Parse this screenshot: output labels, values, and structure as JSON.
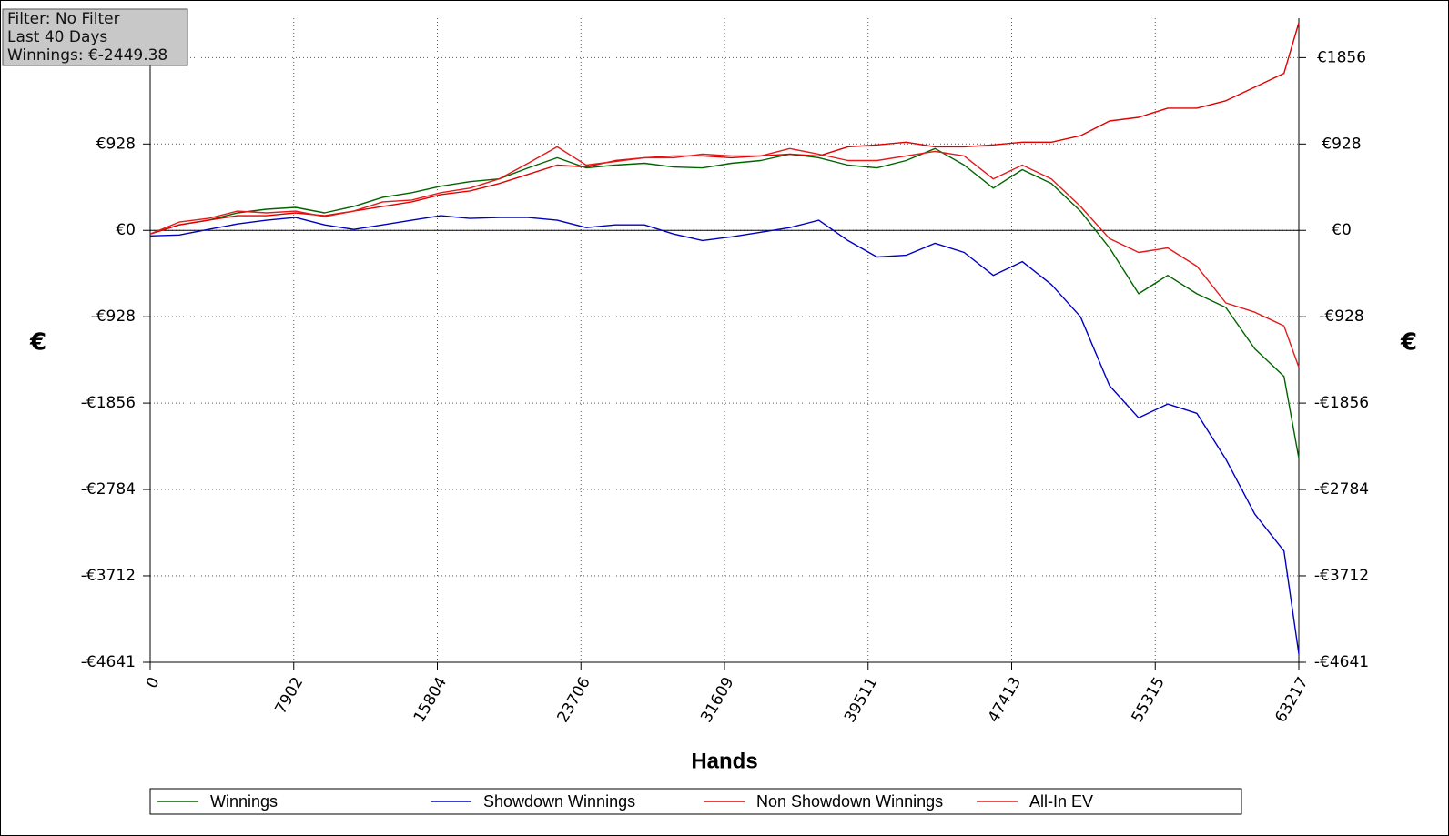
{
  "info": {
    "filter": "Filter: No Filter",
    "period": "Last  40 Days",
    "winnings": "Winnings: €-2449.38"
  },
  "chart_data": {
    "type": "line",
    "xlabel": "Hands",
    "ylabel": "€",
    "x": [
      0,
      1600,
      3200,
      4800,
      6400,
      8000,
      9600,
      11200,
      12800,
      14400,
      16000,
      17600,
      19200,
      20800,
      22400,
      24000,
      25600,
      27200,
      28800,
      30400,
      32000,
      33600,
      35200,
      36800,
      38400,
      40000,
      41600,
      43200,
      44800,
      46400,
      48000,
      49600,
      51200,
      52800,
      54400,
      56000,
      57600,
      59200,
      60800,
      62400,
      63217
    ],
    "xlim": [
      0,
      63217
    ],
    "xticks": [
      0,
      7902,
      15804,
      23706,
      31609,
      39511,
      47413,
      55315,
      63217
    ],
    "ylim": [
      -4641,
      2280
    ],
    "yticks": [
      {
        "value": 1856,
        "label": "€1856"
      },
      {
        "value": 928,
        "label": "€928"
      },
      {
        "value": 0,
        "label": "€0"
      },
      {
        "value": -928,
        "label": "-€928"
      },
      {
        "value": -1856,
        "label": "-€1856"
      },
      {
        "value": -2784,
        "label": "-€2784"
      },
      {
        "value": -3712,
        "label": "-€3712"
      },
      {
        "value": -4641,
        "label": "-€4641"
      }
    ],
    "grid": true,
    "legend": "bottom",
    "series": [
      {
        "name": "Winnings",
        "color": "#006400",
        "values": [
          -39,
          59,
          109,
          188,
          227,
          247,
          188,
          257,
          355,
          405,
          474,
          523,
          553,
          671,
          780,
          671,
          701,
          721,
          681,
          671,
          721,
          750,
          819,
          780,
          701,
          671,
          750,
          879,
          701,
          454,
          652,
          503,
          207,
          -188,
          -681,
          -484,
          -681,
          -829,
          -1273,
          -1569,
          -2449
        ]
      },
      {
        "name": "Showdown Winnings",
        "color": "#0000c0",
        "values": [
          -59,
          -49,
          10,
          69,
          109,
          138,
          59,
          10,
          59,
          109,
          158,
          128,
          138,
          138,
          109,
          30,
          59,
          59,
          -39,
          -109,
          -69,
          -20,
          30,
          109,
          -109,
          -286,
          -267,
          -138,
          -237,
          -484,
          -336,
          -582,
          -928,
          -1668,
          -2014,
          -1866,
          -1965,
          -2458,
          -3050,
          -3445,
          -4551
        ]
      },
      {
        "name": "Non Showdown Winnings",
        "color": "#e00000",
        "values": [
          -39,
          59,
          109,
          158,
          158,
          188,
          158,
          207,
          257,
          306,
          385,
          424,
          503,
          602,
          701,
          681,
          750,
          780,
          800,
          800,
          780,
          800,
          819,
          800,
          898,
          918,
          948,
          898,
          898,
          918,
          948,
          948,
          1017,
          1175,
          1214,
          1313,
          1313,
          1392,
          1540,
          1688,
          2231
        ]
      },
      {
        "name": "All-In EV",
        "color": "#e41a1a",
        "values": [
          -39,
          89,
          128,
          207,
          188,
          207,
          148,
          207,
          306,
          326,
          405,
          454,
          553,
          721,
          898,
          701,
          740,
          780,
          780,
          819,
          800,
          800,
          879,
          819,
          750,
          750,
          800,
          849,
          800,
          553,
          701,
          553,
          257,
          -89,
          -237,
          -188,
          -385,
          -780,
          -879,
          -1027,
          -1471
        ]
      }
    ]
  }
}
